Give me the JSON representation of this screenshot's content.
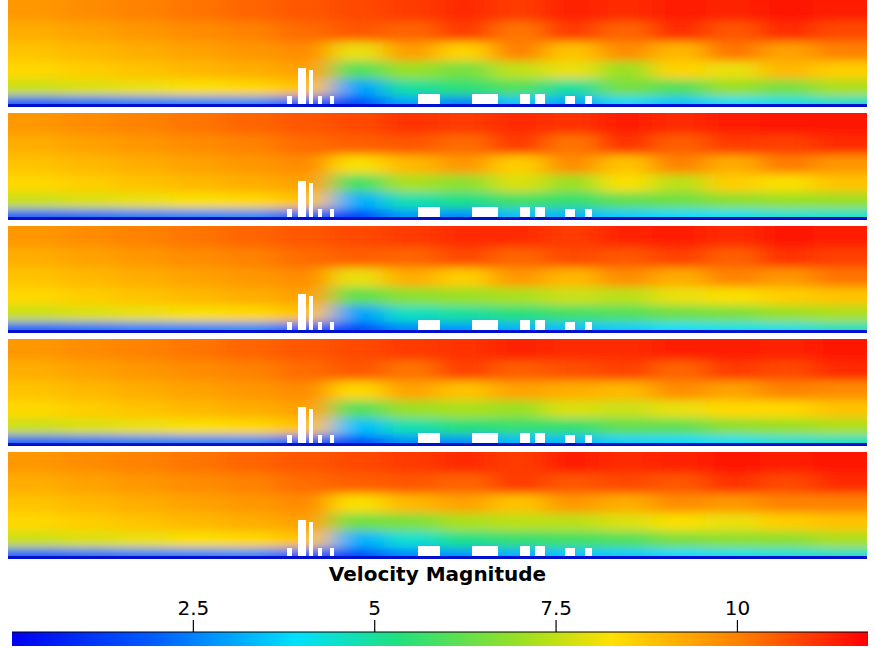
{
  "chart_data": {
    "type": "heatmap",
    "tick_labels": false,
    "colorbar_title": "Velocity Magnitude",
    "colorbar_range": [
      0,
      11.8
    ],
    "colorbar_ticks": [
      2.5,
      5,
      7.5,
      10
    ],
    "panels": [
      {
        "cells": [
          [
            9.6,
            9.8,
            10.0,
            10.2,
            10.4,
            10.6,
            10.8,
            11.0,
            11.2,
            11.0,
            11.3,
            11.2,
            11.4,
            11.3,
            11.5,
            11.4
          ],
          [
            9.2,
            9.4,
            9.6,
            9.8,
            10.0,
            10.3,
            10.6,
            10.4,
            11.0,
            10.2,
            11.0,
            10.4,
            11.2,
            10.6,
            11.2,
            10.8
          ],
          [
            8.8,
            9.0,
            9.2,
            9.4,
            9.6,
            9.8,
            8.0,
            9.5,
            8.5,
            10.0,
            8.8,
            9.8,
            9.0,
            10.2,
            9.4,
            10.0
          ],
          [
            8.4,
            8.6,
            8.8,
            9.0,
            9.2,
            9.4,
            6.0,
            7.0,
            6.5,
            7.5,
            8.0,
            7.0,
            8.5,
            8.0,
            9.0,
            8.6
          ],
          [
            7.6,
            7.8,
            8.0,
            8.2,
            8.4,
            8.8,
            3.0,
            5.0,
            5.5,
            6.0,
            5.0,
            6.5,
            6.0,
            7.0,
            6.5,
            7.2
          ],
          [
            2.0,
            2.2,
            2.4,
            2.5,
            2.6,
            2.0,
            1.5,
            3.0,
            2.5,
            3.5,
            3.0,
            3.8,
            3.5,
            4.0,
            4.2,
            4.5
          ]
        ]
      },
      {
        "cells": [
          [
            9.6,
            9.8,
            10.0,
            10.2,
            10.4,
            10.6,
            10.8,
            11.1,
            11.0,
            11.2,
            11.1,
            11.4,
            11.2,
            11.4,
            11.5,
            11.5
          ],
          [
            9.2,
            9.4,
            9.6,
            9.8,
            10.0,
            10.3,
            10.5,
            10.6,
            10.3,
            11.0,
            10.2,
            11.1,
            10.5,
            11.0,
            10.9,
            11.2
          ],
          [
            8.8,
            9.0,
            9.2,
            9.4,
            9.6,
            9.8,
            8.2,
            9.0,
            9.6,
            8.6,
            9.8,
            8.8,
            10.0,
            9.2,
            10.1,
            9.6
          ],
          [
            8.4,
            8.6,
            8.8,
            9.0,
            9.2,
            9.4,
            5.8,
            7.2,
            6.8,
            7.8,
            7.0,
            8.2,
            7.4,
            8.6,
            8.2,
            8.8
          ],
          [
            7.6,
            7.8,
            8.0,
            8.2,
            8.4,
            8.8,
            3.2,
            4.8,
            5.2,
            5.8,
            5.6,
            6.2,
            6.4,
            6.8,
            7.0,
            7.0
          ],
          [
            2.0,
            2.2,
            2.4,
            2.5,
            2.6,
            2.0,
            1.4,
            2.8,
            2.6,
            3.4,
            3.2,
            3.6,
            3.8,
            4.0,
            4.3,
            4.4
          ]
        ]
      },
      {
        "cells": [
          [
            9.6,
            9.8,
            10.0,
            10.2,
            10.4,
            10.6,
            10.8,
            11.0,
            11.2,
            11.2,
            11.0,
            11.3,
            11.4,
            11.2,
            11.5,
            11.4
          ],
          [
            9.2,
            9.4,
            9.6,
            9.8,
            10.0,
            10.3,
            10.5,
            10.4,
            10.8,
            10.4,
            10.8,
            10.6,
            10.9,
            10.5,
            11.1,
            10.9
          ],
          [
            8.8,
            9.0,
            9.2,
            9.4,
            9.6,
            9.8,
            8.0,
            9.2,
            8.6,
            9.6,
            9.0,
            9.8,
            9.2,
            10.0,
            9.6,
            10.2
          ],
          [
            8.4,
            8.6,
            8.8,
            9.0,
            9.2,
            9.4,
            6.2,
            6.8,
            7.0,
            7.2,
            7.6,
            7.4,
            8.0,
            8.2,
            8.6,
            8.8
          ],
          [
            7.6,
            7.8,
            8.0,
            8.2,
            8.4,
            8.8,
            3.0,
            4.6,
            5.0,
            5.4,
            5.8,
            6.0,
            6.4,
            6.6,
            7.0,
            7.2
          ],
          [
            2.0,
            2.2,
            2.4,
            2.5,
            2.6,
            2.0,
            1.5,
            2.6,
            2.8,
            3.2,
            3.4,
            3.6,
            3.9,
            4.1,
            4.2,
            4.6
          ]
        ]
      },
      {
        "cells": [
          [
            9.6,
            9.8,
            10.0,
            10.2,
            10.4,
            10.6,
            10.8,
            11.0,
            11.1,
            11.3,
            11.2,
            11.2,
            11.4,
            11.4,
            11.3,
            11.5
          ],
          [
            9.2,
            9.4,
            9.6,
            9.8,
            10.0,
            10.3,
            10.6,
            10.2,
            10.9,
            10.5,
            10.7,
            10.9,
            10.4,
            11.0,
            10.8,
            11.2
          ],
          [
            8.8,
            9.0,
            9.2,
            9.4,
            9.6,
            9.8,
            8.4,
            9.4,
            8.8,
            9.4,
            9.2,
            9.0,
            9.8,
            9.4,
            10.0,
            9.8
          ],
          [
            8.4,
            8.6,
            8.8,
            9.0,
            9.2,
            9.4,
            6.0,
            7.0,
            7.2,
            7.0,
            7.8,
            7.6,
            8.0,
            8.4,
            8.4,
            8.8
          ],
          [
            7.6,
            7.8,
            8.0,
            8.2,
            8.4,
            8.8,
            3.4,
            4.8,
            5.4,
            5.6,
            5.6,
            6.2,
            6.2,
            6.8,
            7.0,
            7.2
          ],
          [
            2.0,
            2.2,
            2.4,
            2.5,
            2.6,
            2.0,
            1.6,
            2.7,
            2.7,
            3.3,
            3.3,
            3.7,
            3.8,
            4.0,
            4.3,
            4.5
          ]
        ]
      },
      {
        "cells": [
          [
            9.6,
            9.8,
            10.0,
            10.2,
            10.4,
            10.6,
            10.8,
            11.0,
            11.2,
            11.0,
            11.4,
            11.2,
            11.3,
            11.5,
            11.4,
            11.5
          ],
          [
            9.2,
            9.4,
            9.6,
            9.8,
            10.0,
            10.3,
            10.5,
            10.6,
            10.4,
            11.0,
            10.6,
            10.8,
            10.6,
            11.1,
            10.8,
            11.2
          ],
          [
            8.8,
            9.0,
            9.2,
            9.4,
            9.6,
            9.8,
            8.2,
            9.0,
            9.4,
            8.8,
            9.6,
            9.2,
            9.8,
            9.6,
            10.0,
            10.0
          ],
          [
            8.4,
            8.6,
            8.8,
            9.0,
            9.2,
            9.4,
            6.4,
            6.6,
            7.2,
            7.4,
            7.4,
            7.8,
            8.2,
            8.0,
            8.6,
            8.8
          ],
          [
            7.6,
            7.8,
            8.0,
            8.2,
            8.4,
            8.8,
            3.2,
            4.4,
            5.2,
            5.6,
            5.8,
            6.0,
            6.6,
            6.8,
            6.8,
            7.2
          ],
          [
            2.0,
            2.2,
            2.4,
            2.5,
            2.6,
            2.0,
            1.5,
            2.6,
            2.8,
            3.2,
            3.5,
            3.6,
            3.8,
            4.1,
            4.3,
            4.5
          ]
        ]
      }
    ]
  }
}
